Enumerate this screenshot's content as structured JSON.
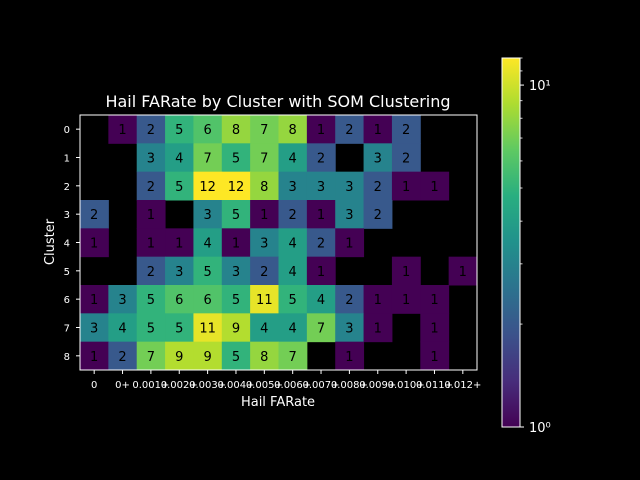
{
  "chart_data": {
    "type": "heatmap",
    "title": "Hail FARate by Cluster with SOM Clustering",
    "xlabel": "Hail FARate",
    "ylabel": "Cluster",
    "x_tick_labels": [
      "0",
      "0+",
      "0.001+",
      "0.002+",
      "0.003+",
      "0.004+",
      "0.005+",
      "0.006+",
      "0.007+",
      "0.008+",
      "0.009+",
      "0.010+",
      "0.011+",
      "0.012+"
    ],
    "y_tick_labels": [
      "0",
      "1",
      "2",
      "3",
      "4",
      "5",
      "6",
      "7",
      "8"
    ],
    "color_scale": "log",
    "colormap": "viridis",
    "background": "#000000",
    "colorbar": {
      "min": 1,
      "max": 12,
      "ticks": [
        1,
        10
      ],
      "tick_labels": [
        "10⁰",
        "10¹"
      ]
    },
    "values": [
      [
        null,
        1,
        2,
        5,
        6,
        8,
        7,
        8,
        1,
        2,
        1,
        2,
        null,
        null
      ],
      [
        null,
        null,
        3,
        4,
        7,
        5,
        7,
        4,
        2,
        null,
        3,
        2,
        null,
        null
      ],
      [
        null,
        null,
        2,
        5,
        12,
        12,
        8,
        3,
        3,
        3,
        2,
        1,
        1,
        null
      ],
      [
        2,
        null,
        1,
        null,
        3,
        5,
        1,
        2,
        1,
        3,
        2,
        null,
        null,
        null
      ],
      [
        1,
        null,
        1,
        1,
        4,
        1,
        3,
        4,
        2,
        1,
        null,
        null,
        null,
        null
      ],
      [
        null,
        null,
        2,
        3,
        5,
        3,
        2,
        4,
        1,
        null,
        null,
        1,
        null,
        1
      ],
      [
        1,
        3,
        5,
        6,
        6,
        5,
        11,
        5,
        4,
        2,
        1,
        1,
        1,
        null
      ],
      [
        3,
        4,
        5,
        5,
        11,
        9,
        4,
        4,
        7,
        3,
        1,
        null,
        1,
        null
      ],
      [
        1,
        2,
        7,
        9,
        9,
        5,
        8,
        7,
        null,
        1,
        null,
        null,
        1,
        null
      ]
    ]
  }
}
